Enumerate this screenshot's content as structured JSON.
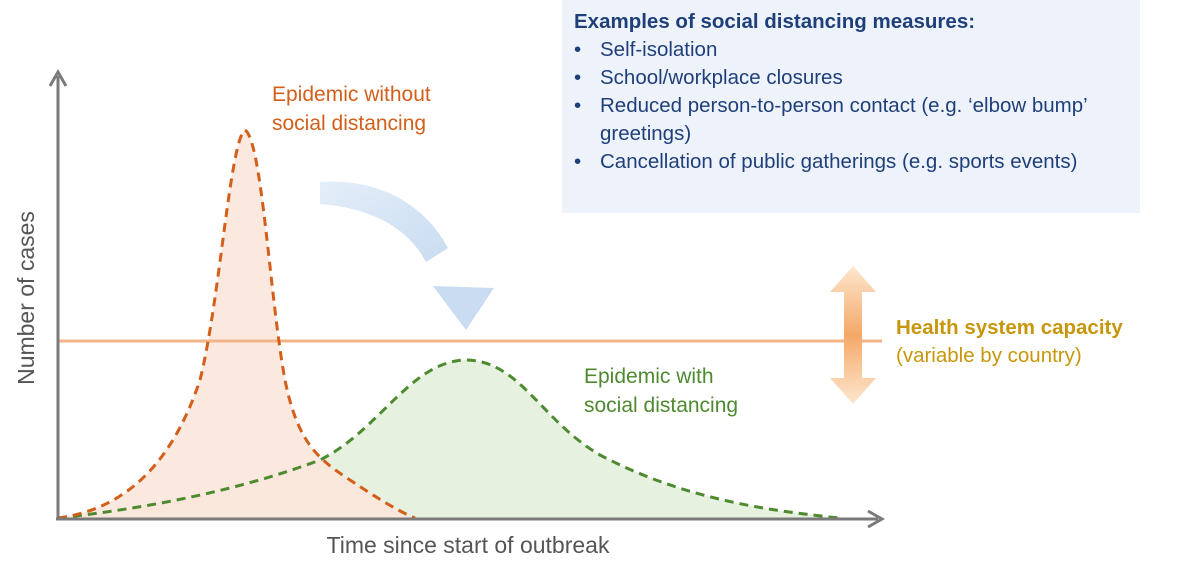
{
  "axes": {
    "y_label": "Number of cases",
    "x_label": "Time since start of outbreak"
  },
  "curves": {
    "without": {
      "label_line1": "Epidemic without",
      "label_line2": "social distancing",
      "color": "#d35f1a",
      "fill": "#fbe6da"
    },
    "with": {
      "label_line1": "Epidemic with",
      "label_line2": "social distancing",
      "color": "#4e8a2f",
      "fill": "#e6f2df"
    }
  },
  "capacity": {
    "title": "Health system capacity",
    "subtitle": "(variable by country)",
    "line_color": "#f2b58a",
    "text_color": "#c8960a"
  },
  "measures": {
    "title": "Examples of social distancing measures:",
    "items": [
      {
        "bullet": "•",
        "text": "Self-isolation"
      },
      {
        "bullet": "•",
        "text": "School/workplace closures"
      },
      {
        "bullet": "•",
        "text": "Reduced person-to-person contact (e.g. ‘elbow bump’ greetings)"
      },
      {
        "bullet": "•",
        "text": "Cancellation of public gatherings (e.g. sports events)"
      }
    ]
  }
}
